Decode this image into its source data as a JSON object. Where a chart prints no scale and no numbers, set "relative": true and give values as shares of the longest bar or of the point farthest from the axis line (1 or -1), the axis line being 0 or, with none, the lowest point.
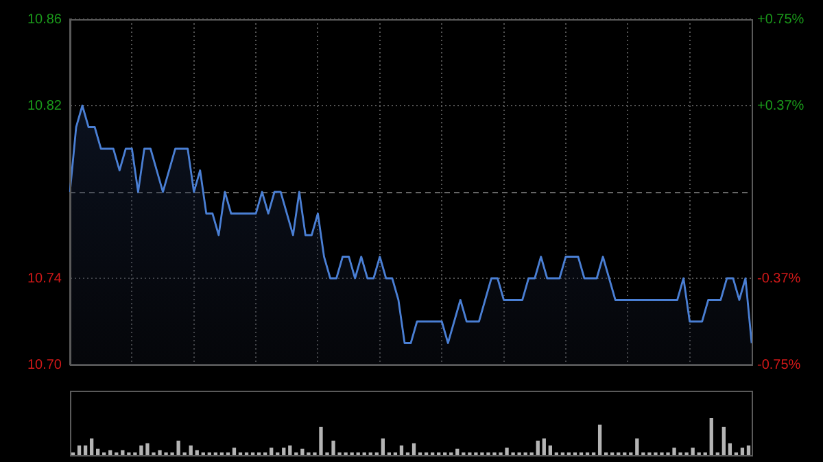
{
  "chart_data": [
    {
      "type": "area",
      "categories": [
        null,
        null,
        null,
        null,
        null,
        null,
        null,
        null,
        null,
        null,
        null,
        null,
        null,
        null,
        null,
        null,
        null,
        null,
        null,
        null,
        null,
        null,
        null,
        null,
        null,
        null,
        null,
        null,
        null,
        null,
        null,
        null,
        null,
        null,
        null,
        null,
        null,
        null,
        null,
        null,
        null,
        null,
        null,
        null,
        null,
        null,
        null,
        null,
        null,
        null,
        null,
        null,
        null,
        null,
        null,
        null,
        null,
        null,
        null,
        null,
        null,
        null,
        null,
        null,
        null,
        null,
        null,
        null,
        null,
        null,
        null,
        null,
        null,
        null,
        null,
        null,
        null,
        null,
        null,
        null,
        null,
        null,
        null,
        null,
        null,
        null,
        null,
        null,
        null,
        null,
        null,
        null,
        null,
        null,
        null,
        null,
        null,
        null,
        null,
        null,
        null,
        null,
        null,
        null,
        null,
        null,
        null,
        null,
        null,
        null,
        null
      ],
      "series": [
        {
          "color": "#4a7fd4",
          "values": [
            10.78,
            10.81,
            10.82,
            10.81,
            10.81,
            10.8,
            10.8,
            10.8,
            10.79,
            10.8,
            10.8,
            10.78,
            10.8,
            10.8,
            10.79,
            10.78,
            10.79,
            10.8,
            10.8,
            10.8,
            10.78,
            10.79,
            10.77,
            10.77,
            10.76,
            10.78,
            10.77,
            10.77,
            10.77,
            10.77,
            10.77,
            10.78,
            10.77,
            10.78,
            10.78,
            10.77,
            10.76,
            10.78,
            10.76,
            10.76,
            10.77,
            10.75,
            10.74,
            10.74,
            10.75,
            10.75,
            10.74,
            10.75,
            10.74,
            10.74,
            10.75,
            10.74,
            10.74,
            10.73,
            10.71,
            10.71,
            10.72,
            10.72,
            10.72,
            10.72,
            10.72,
            10.71,
            10.72,
            10.73,
            10.72,
            10.72,
            10.72,
            10.73,
            10.74,
            10.74,
            10.73,
            10.73,
            10.73,
            10.73,
            10.74,
            10.74,
            10.75,
            10.74,
            10.74,
            10.74,
            10.75,
            10.75,
            10.75,
            10.74,
            10.74,
            10.74,
            10.75,
            10.74,
            10.73,
            10.73,
            10.73,
            10.73,
            10.73,
            10.73,
            10.73,
            10.73,
            10.73,
            10.73,
            10.73,
            10.74,
            10.72,
            10.72,
            10.72,
            10.73,
            10.73,
            10.73,
            10.74,
            10.74,
            10.73,
            10.74,
            10.71
          ]
        }
      ],
      "ylim": [
        10.7,
        10.86
      ],
      "yticks": [
        {
          "value": 10.7,
          "label": "10.70"
        },
        10.74,
        10.82,
        10.86
      ],
      "y2lim": [
        -0.75,
        0.75
      ],
      "y2ticks": [
        {
          "value": -0.75,
          "label": "-0.75%"
        },
        {
          "value": -0.375,
          "label": "-0.37%"
        },
        {
          "value": 0.375,
          "label": "+0.37%"
        },
        {
          "value": 0.75,
          "label": "+0.75%"
        }
      ],
      "ref_lines": [
        {
          "axis": "y",
          "value": 10.78,
          "color": "#666666",
          "line_style": "dashed"
        }
      ],
      "grid": true,
      "tick_labels": "y"
    },
    {
      "type": "bar",
      "relative": true,
      "categories": [
        null,
        null,
        null,
        null,
        null,
        null,
        null,
        null,
        null,
        null,
        null,
        null,
        null,
        null,
        null,
        null,
        null,
        null,
        null,
        null,
        null,
        null,
        null,
        null,
        null,
        null,
        null,
        null,
        null,
        null,
        null,
        null,
        null,
        null,
        null,
        null,
        null,
        null,
        null,
        null,
        null,
        null,
        null,
        null,
        null,
        null,
        null,
        null,
        null,
        null,
        null,
        null,
        null,
        null,
        null,
        null,
        null,
        null,
        null,
        null,
        null,
        null,
        null,
        null,
        null,
        null,
        null,
        null,
        null,
        null,
        null,
        null,
        null,
        null,
        null,
        null,
        null,
        null,
        null,
        null,
        null,
        null,
        null,
        null,
        null,
        null,
        null,
        null,
        null,
        null,
        null,
        null,
        null,
        null,
        null,
        null,
        null,
        null,
        null,
        null,
        null,
        null,
        null,
        null,
        null,
        null,
        null,
        null,
        null,
        null
      ],
      "color": "#b4b4b4",
      "values": [
        0.06,
        0.25,
        0.25,
        0.44,
        0.16,
        0.06,
        0.12,
        0.06,
        0.12,
        0.06,
        0.06,
        0.25,
        0.31,
        0.06,
        0.12,
        0.06,
        0.06,
        0.38,
        0.06,
        0.25,
        0.12,
        0.06,
        0.06,
        0.06,
        0.06,
        0.06,
        0.19,
        0.06,
        0.06,
        0.06,
        0.06,
        0.06,
        0.19,
        0.06,
        0.19,
        0.25,
        0.06,
        0.16,
        0.06,
        0.06,
        0.75,
        0.06,
        0.38,
        0.06,
        0.06,
        0.06,
        0.06,
        0.06,
        0.06,
        0.06,
        0.44,
        0.06,
        0.06,
        0.25,
        0.06,
        0.31,
        0.06,
        0.06,
        0.06,
        0.06,
        0.06,
        0.06,
        0.16,
        0.06,
        0.06,
        0.06,
        0.06,
        0.06,
        0.06,
        0.06,
        0.19,
        0.06,
        0.06,
        0.06,
        0.06,
        0.38,
        0.44,
        0.25,
        0.06,
        0.06,
        0.06,
        0.06,
        0.06,
        0.06,
        0.06,
        0.81,
        0.06,
        0.06,
        0.06,
        0.06,
        0.06,
        0.44,
        0.06,
        0.06,
        0.06,
        0.06,
        0.06,
        0.19,
        0.06,
        0.06,
        0.19,
        0.06,
        0.06,
        1,
        0.06,
        0.75,
        0.31,
        0.06,
        0.19,
        0.25
      ]
    }
  ]
}
